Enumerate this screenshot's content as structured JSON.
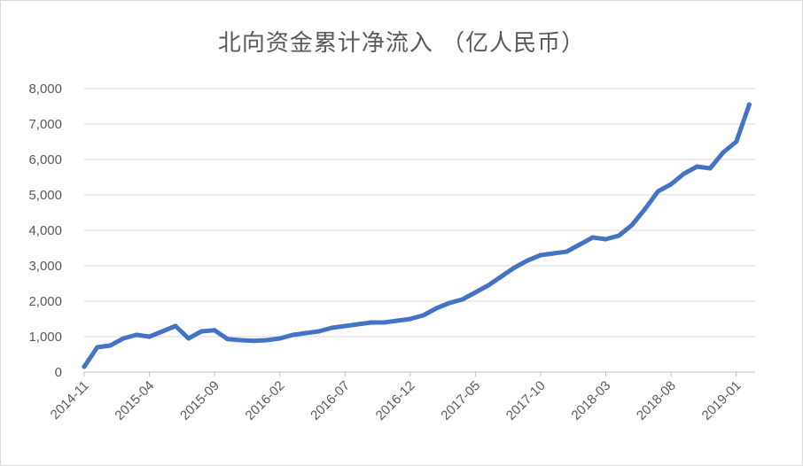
{
  "chart_data": {
    "type": "line",
    "title": "北向资金累计净流入 （亿人民币）",
    "xlabel": "",
    "ylabel": "",
    "ylim": [
      0,
      8000
    ],
    "y_ticks": [
      "0",
      "1,000",
      "2,000",
      "3,000",
      "4,000",
      "5,000",
      "6,000",
      "7,000",
      "8,000"
    ],
    "x_ticks": [
      "2014-11",
      "2015-04",
      "2015-09",
      "2016-02",
      "2016-07",
      "2016-12",
      "2017-05",
      "2017-10",
      "2018-03",
      "2018-08",
      "2019-01"
    ],
    "grid": "horizontal",
    "legend": "none",
    "color": "#4472C4",
    "series": [
      {
        "x": [
          "2014-11",
          "2014-12",
          "2015-01",
          "2015-02",
          "2015-03",
          "2015-04",
          "2015-05",
          "2015-06",
          "2015-07",
          "2015-08",
          "2015-09",
          "2015-10",
          "2015-11",
          "2015-12",
          "2016-01",
          "2016-02",
          "2016-03",
          "2016-04",
          "2016-05",
          "2016-06",
          "2016-07",
          "2016-08",
          "2016-09",
          "2016-10",
          "2016-11",
          "2016-12",
          "2017-01",
          "2017-02",
          "2017-03",
          "2017-04",
          "2017-05",
          "2017-06",
          "2017-07",
          "2017-08",
          "2017-09",
          "2017-10",
          "2017-11",
          "2017-12",
          "2018-01",
          "2018-02",
          "2018-03",
          "2018-04",
          "2018-05",
          "2018-06",
          "2018-07",
          "2018-08",
          "2018-09",
          "2018-10",
          "2018-11",
          "2018-12",
          "2019-01",
          "2019-02"
        ],
        "y": [
          150,
          700,
          750,
          950,
          1050,
          1000,
          1150,
          1300,
          950,
          1150,
          1180,
          930,
          900,
          880,
          900,
          950,
          1050,
          1100,
          1150,
          1250,
          1300,
          1350,
          1400,
          1400,
          1450,
          1500,
          1600,
          1800,
          1950,
          2050,
          2250,
          2450,
          2700,
          2950,
          3150,
          3300,
          3350,
          3400,
          3600,
          3800,
          3750,
          3850,
          4150,
          4600,
          5100,
          5300,
          5600,
          5800,
          5750,
          6200,
          6500,
          7550
        ]
      }
    ]
  }
}
